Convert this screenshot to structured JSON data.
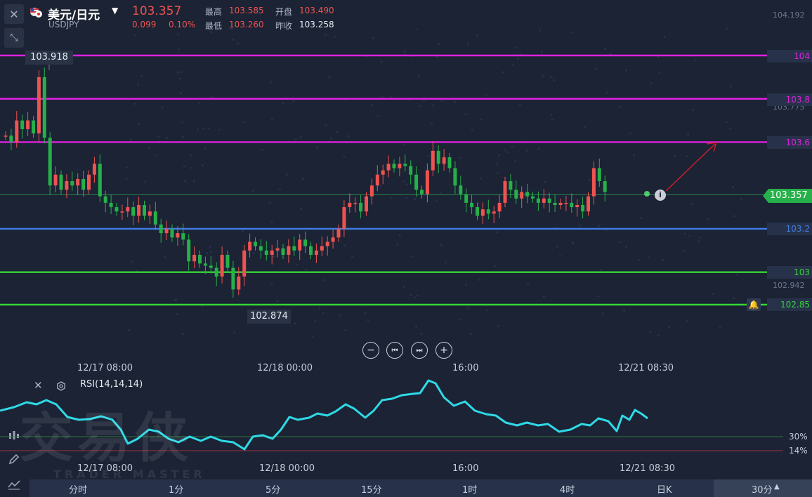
{
  "header": {
    "symbol": "美元/日元",
    "ticker": "USDJPY",
    "price": "103.357",
    "change": "0.099",
    "change_pct": "0.10%",
    "high_label": "最高",
    "high": "103.585",
    "open_label": "开盘",
    "open": "103.490",
    "low_label": "最低",
    "low": "103.260",
    "prev_label": "昨收",
    "prev": "103.258"
  },
  "price_axis": {
    "top": "104.192",
    "mid1": "103.775",
    "low": "102.942",
    "current": "103.357"
  },
  "levels": [
    {
      "label": "104",
      "value": 104.0,
      "color": "#e020e0"
    },
    {
      "label": "103.8",
      "value": 103.8,
      "color": "#e020e0"
    },
    {
      "label": "103.6",
      "value": 103.6,
      "color": "#e020e0"
    },
    {
      "label": "103.2",
      "value": 103.2,
      "color": "#3f7ee8"
    },
    {
      "label": "103",
      "value": 103.0,
      "color": "#34d634"
    },
    {
      "label": "102.85",
      "value": 102.85,
      "color": "#34d634"
    }
  ],
  "annotations": {
    "max_label": "103.918",
    "min_label": "102.874"
  },
  "time_axis": [
    "12/17 08:00",
    "12/18 00:00",
    "16:00",
    "12/21 08:30"
  ],
  "rsi": {
    "title": "RSI(14,14,14)",
    "level30": "30%",
    "level14": "14%"
  },
  "periods": {
    "items": [
      "分时",
      "1分",
      "5分",
      "15分",
      "1时",
      "4时",
      "日K"
    ],
    "active": "30分"
  },
  "watermark": {
    "brand": "交易侠",
    "brand_en": "TRADER MASTER"
  },
  "colors": {
    "up": "#ef5350",
    "down": "#26b04a",
    "rsi_line": "#2fd9e6"
  }
}
